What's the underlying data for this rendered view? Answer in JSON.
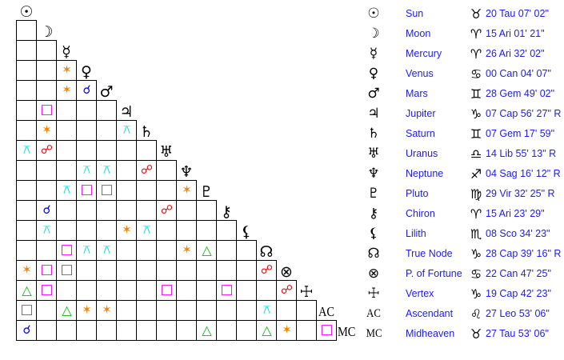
{
  "bodies": [
    {
      "name": "Sun",
      "glyph": "☉",
      "icon": "sun-icon",
      "sign_glyph": "♉",
      "sign_icon": "taurus-icon",
      "position": "20 Tau 07' 02\""
    },
    {
      "name": "Moon",
      "glyph": "☽",
      "icon": "moon-icon",
      "sign_glyph": "♈",
      "sign_icon": "aries-icon",
      "position": "15 Ari 01' 21\""
    },
    {
      "name": "Mercury",
      "glyph": "☿",
      "icon": "mercury-icon",
      "sign_glyph": "♈",
      "sign_icon": "aries-icon",
      "position": "26 Ari 32' 02\""
    },
    {
      "name": "Venus",
      "glyph": "♀",
      "icon": "venus-icon",
      "sign_glyph": "♋",
      "sign_icon": "cancer-icon",
      "position": "00 Can 04' 07\""
    },
    {
      "name": "Mars",
      "glyph": "♂",
      "icon": "mars-icon",
      "sign_glyph": "♊",
      "sign_icon": "gemini-icon",
      "position": "28 Gem 49' 02\""
    },
    {
      "name": "Jupiter",
      "glyph": "♃",
      "icon": "jupiter-icon",
      "sign_glyph": "♑",
      "sign_icon": "capricorn-icon",
      "position": "07 Cap 56' 27\" R"
    },
    {
      "name": "Saturn",
      "glyph": "♄",
      "icon": "saturn-icon",
      "sign_glyph": "♊",
      "sign_icon": "gemini-icon",
      "position": "07 Gem 17' 59\""
    },
    {
      "name": "Uranus",
      "glyph": "♅",
      "icon": "uranus-icon",
      "sign_glyph": "♎",
      "sign_icon": "libra-icon",
      "position": "14 Lib 55' 13\" R"
    },
    {
      "name": "Neptune",
      "glyph": "♆",
      "icon": "neptune-icon",
      "sign_glyph": "♐",
      "sign_icon": "sagittarius-icon",
      "position": "04 Sag 16' 12\" R"
    },
    {
      "name": "Pluto",
      "glyph": "♇",
      "icon": "pluto-icon",
      "sign_glyph": "♍",
      "sign_icon": "virgo-icon",
      "position": "29 Vir 32' 25\" R"
    },
    {
      "name": "Chiron",
      "glyph": "⚷",
      "icon": "chiron-icon",
      "sign_glyph": "♈",
      "sign_icon": "aries-icon",
      "position": "15 Ari 23' 29\""
    },
    {
      "name": "Lilith",
      "glyph": "⚸",
      "icon": "lilith-icon",
      "sign_glyph": "♏",
      "sign_icon": "scorpio-icon",
      "position": "08 Sco 34' 23\""
    },
    {
      "name": "True Node",
      "glyph": "☊",
      "icon": "north-node-icon",
      "sign_glyph": "♑",
      "sign_icon": "capricorn-icon",
      "position": "28 Cap 39' 16\" R"
    },
    {
      "name": "P. of Fortune",
      "glyph": "⊗",
      "icon": "part-of-fortune-icon",
      "sign_glyph": "♋",
      "sign_icon": "cancer-icon",
      "position": "22 Can 47' 25\""
    },
    {
      "name": "Vertex",
      "glyph": "☩",
      "icon": "vertex-icon",
      "sign_glyph": "♑",
      "sign_icon": "capricorn-icon",
      "position": "19 Cap 42' 23\""
    },
    {
      "name": "Ascendant",
      "glyph": "AC",
      "icon": "ascendant-icon",
      "sign_glyph": "♌",
      "sign_icon": "leo-icon",
      "position": "27 Leo 53' 06\""
    },
    {
      "name": "Midheaven",
      "glyph": "MC",
      "icon": "midheaven-icon",
      "sign_glyph": "♉",
      "sign_icon": "taurus-icon",
      "position": "27 Tau 53' 06\""
    }
  ],
  "aspect_types": {
    "conjunction": {
      "glyph": "☌",
      "color": "#0000ff"
    },
    "opposition": {
      "glyph": "☍",
      "color": "#ff0000"
    },
    "trine": {
      "glyph": "△",
      "color": "#00c000"
    },
    "square": {
      "glyph": "□",
      "color": "#ff00ff"
    },
    "sextile": {
      "glyph": "✶",
      "color": "#ff8000"
    },
    "quincunx": {
      "glyph": "⚻",
      "color": "#00e0e0"
    }
  },
  "aspects": [
    {
      "a": "Mercury",
      "b": "Venus",
      "type": "sextile"
    },
    {
      "a": "Mercury",
      "b": "Mars",
      "type": "sextile"
    },
    {
      "a": "Venus",
      "b": "Mars",
      "type": "conjunction"
    },
    {
      "a": "Moon",
      "b": "Jupiter",
      "type": "square"
    },
    {
      "a": "Moon",
      "b": "Saturn",
      "type": "sextile"
    },
    {
      "a": "Jupiter",
      "b": "Saturn",
      "type": "quincunx"
    },
    {
      "a": "Sun",
      "b": "Uranus",
      "type": "quincunx"
    },
    {
      "a": "Moon",
      "b": "Uranus",
      "type": "opposition"
    },
    {
      "a": "Venus",
      "b": "Neptune",
      "type": "quincunx"
    },
    {
      "a": "Mars",
      "b": "Neptune",
      "type": "quincunx"
    },
    {
      "a": "Saturn",
      "b": "Neptune",
      "type": "opposition"
    },
    {
      "a": "Mercury",
      "b": "Pluto",
      "type": "quincunx"
    },
    {
      "a": "Venus",
      "b": "Pluto",
      "type": "square"
    },
    {
      "a": "Mars",
      "b": "Pluto",
      "type": "square"
    },
    {
      "a": "Neptune",
      "b": "Pluto",
      "type": "sextile"
    },
    {
      "a": "Moon",
      "b": "Chiron",
      "type": "conjunction"
    },
    {
      "a": "Uranus",
      "b": "Chiron",
      "type": "opposition"
    },
    {
      "a": "Moon",
      "b": "Lilith",
      "type": "quincunx"
    },
    {
      "a": "Jupiter",
      "b": "Lilith",
      "type": "sextile"
    },
    {
      "a": "Saturn",
      "b": "Lilith",
      "type": "quincunx"
    },
    {
      "a": "Mercury",
      "b": "True Node",
      "type": "square"
    },
    {
      "a": "Venus",
      "b": "True Node",
      "type": "quincunx"
    },
    {
      "a": "Mars",
      "b": "True Node",
      "type": "quincunx"
    },
    {
      "a": "Neptune",
      "b": "True Node",
      "type": "sextile"
    },
    {
      "a": "Pluto",
      "b": "True Node",
      "type": "trine"
    },
    {
      "a": "Sun",
      "b": "P. of Fortune",
      "type": "sextile"
    },
    {
      "a": "Moon",
      "b": "P. of Fortune",
      "type": "square"
    },
    {
      "a": "Mercury",
      "b": "P. of Fortune",
      "type": "square"
    },
    {
      "a": "True Node",
      "b": "P. of Fortune",
      "type": "opposition"
    },
    {
      "a": "Sun",
      "b": "Vertex",
      "type": "trine"
    },
    {
      "a": "Moon",
      "b": "Vertex",
      "type": "square"
    },
    {
      "a": "Uranus",
      "b": "Vertex",
      "type": "square"
    },
    {
      "a": "Chiron",
      "b": "Vertex",
      "type": "square"
    },
    {
      "a": "P. of Fortune",
      "b": "Vertex",
      "type": "opposition"
    },
    {
      "a": "Sun",
      "b": "Ascendant",
      "type": "square"
    },
    {
      "a": "Mercury",
      "b": "Ascendant",
      "type": "trine"
    },
    {
      "a": "Venus",
      "b": "Ascendant",
      "type": "sextile"
    },
    {
      "a": "Mars",
      "b": "Ascendant",
      "type": "sextile"
    },
    {
      "a": "True Node",
      "b": "Ascendant",
      "type": "quincunx"
    },
    {
      "a": "Sun",
      "b": "Midheaven",
      "type": "conjunction"
    },
    {
      "a": "Pluto",
      "b": "Midheaven",
      "type": "trine"
    },
    {
      "a": "True Node",
      "b": "Midheaven",
      "type": "trine"
    },
    {
      "a": "P. of Fortune",
      "b": "Midheaven",
      "type": "sextile"
    },
    {
      "a": "Ascendant",
      "b": "Midheaven",
      "type": "square"
    }
  ]
}
